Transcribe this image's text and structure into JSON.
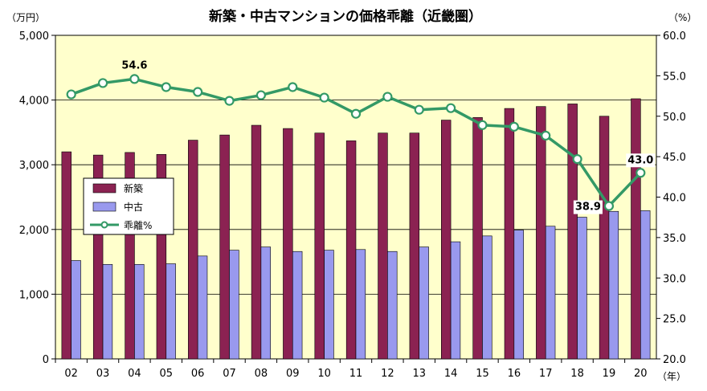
{
  "chart_data": {
    "type": "bar",
    "title": "新築・中古マンションの価格乖離（近畿圏）",
    "y_left_unit": "（万円）",
    "y_right_unit": "（%）",
    "x_unit": "（年）",
    "categories": [
      "02",
      "03",
      "04",
      "05",
      "06",
      "07",
      "08",
      "09",
      "10",
      "11",
      "12",
      "13",
      "14",
      "15",
      "16",
      "17",
      "18",
      "19",
      "20"
    ],
    "y_left_range": [
      0,
      5000
    ],
    "y_left_ticks": [
      "0",
      "1,000",
      "2,000",
      "3,000",
      "4,000",
      "5,000"
    ],
    "y_right_range": [
      20.0,
      60.0
    ],
    "y_right_ticks": [
      "20.0",
      "25.0",
      "30.0",
      "35.0",
      "40.0",
      "45.0",
      "50.0",
      "55.0",
      "60.0"
    ],
    "series": [
      {
        "name": "新築",
        "type": "bar",
        "axis": "left",
        "color": "#8b2252",
        "values": [
          3200,
          3150,
          3190,
          3160,
          3380,
          3460,
          3610,
          3560,
          3490,
          3370,
          3490,
          3490,
          3690,
          3730,
          3870,
          3900,
          3940,
          3750,
          4020
        ]
      },
      {
        "name": "中古",
        "type": "bar",
        "axis": "left",
        "color": "#9999ee",
        "values": [
          1520,
          1460,
          1460,
          1470,
          1590,
          1680,
          1730,
          1660,
          1680,
          1690,
          1660,
          1730,
          1810,
          1900,
          1990,
          2050,
          2190,
          2280,
          2290
        ]
      },
      {
        "name": "乖離%",
        "type": "line",
        "axis": "right",
        "color": "#339966",
        "values": [
          52.7,
          54.1,
          54.6,
          53.6,
          53.0,
          51.9,
          52.6,
          53.6,
          52.3,
          50.3,
          52.4,
          50.8,
          51.0,
          48.9,
          48.7,
          47.6,
          44.7,
          38.9,
          43.0
        ]
      }
    ],
    "annotations": [
      {
        "index": 2,
        "text": "54.6"
      },
      {
        "index": 17,
        "text": "38.9"
      },
      {
        "index": 18,
        "text": "43.0"
      }
    ],
    "legend_position": "left-middle",
    "plot_background": "#ffffcc"
  }
}
